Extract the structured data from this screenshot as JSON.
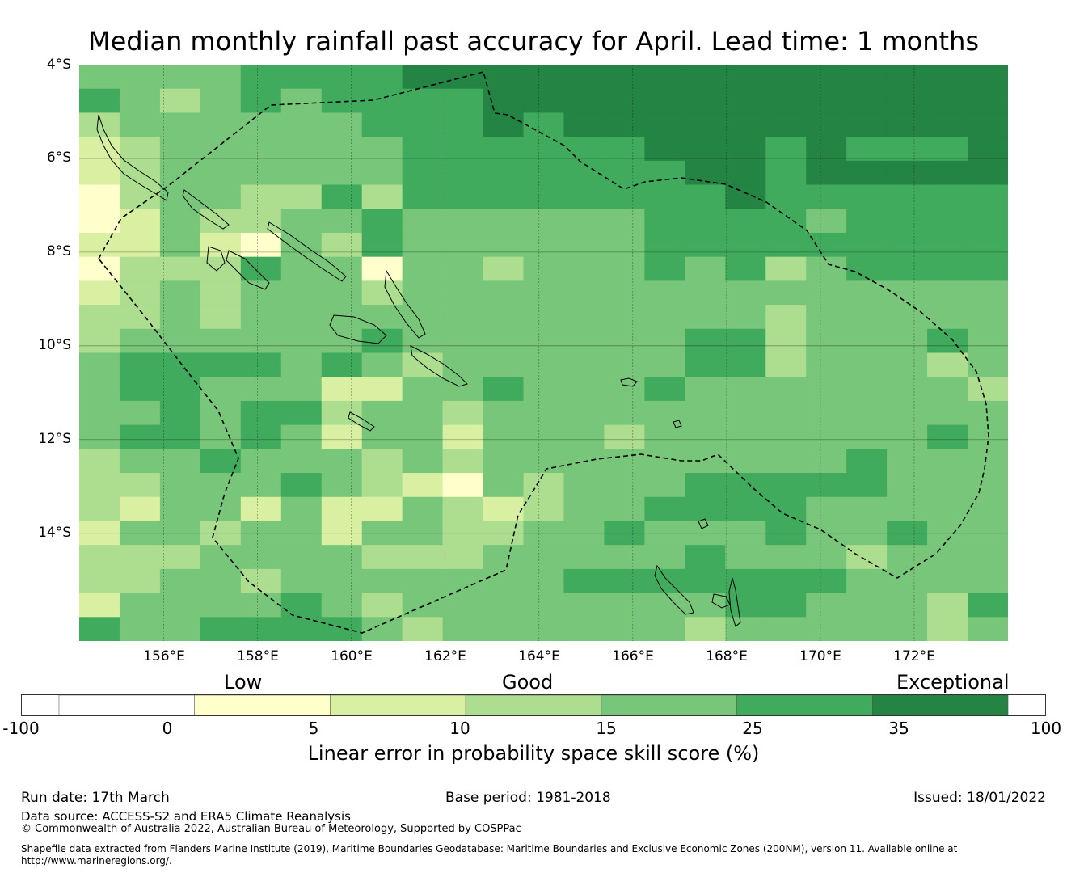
{
  "title": "Median monthly rainfall past accuracy for April. Lead time: 1 months",
  "map": {
    "lon_range": [
      154.2,
      174.0
    ],
    "lat_range": [
      -16.3,
      -4.0
    ],
    "lat_labels": [
      "4°S",
      "6°S",
      "8°S",
      "10°S",
      "12°S",
      "14°S"
    ],
    "lon_labels": [
      "156°E",
      "158°E",
      "160°E",
      "162°E",
      "164°E",
      "166°E",
      "168°E",
      "170°E",
      "172°E"
    ],
    "grid_lons": [
      156,
      158,
      160,
      162,
      164,
      166,
      168,
      170,
      172
    ],
    "grid_lats": [
      -4,
      -6,
      -8,
      -10,
      -12,
      -14
    ],
    "bins": [
      -100,
      0,
      5,
      10,
      15,
      25,
      35,
      100
    ],
    "bin_colors": [
      "#ffffff",
      "#ffffcc",
      "#d9f0a3",
      "#addd8e",
      "#78c679",
      "#41ab5d",
      "#238443"
    ],
    "skill_grid_note": "rows north to south, columns west to east; values are bin index 0-6",
    "skill_grid": [
      "44445555666666666666666",
      "54345455556666666666666",
      "34444445556566666666666",
      "23444444555555666565556",
      "23444444555555566566666",
      "13443353555555556555555",
      "12433445444444555545555",
      "22421435444444555555555",
      "13335441443444545345555",
      "23434443444444444444444",
      "33434444444444444344444",
      "34444445444444455344454",
      "45555454344444455344434",
      "45544422445444544444443",
      "44545534434444444444444",
      "45545424424443444444454",
      "34454443434444444445444",
      "33444543214344455555444",
      "32442422432344555544444",
      "24434424433445444544544",
      "33344443334444454443444",
      "33443444444455555554444",
      "24444543444444445544435",
      "54455554344444434444434"
    ]
  },
  "colorbar": {
    "category_labels": [
      "Low",
      "Good",
      "Exceptional"
    ],
    "ticks": [
      "-100",
      "0",
      "5",
      "10",
      "15",
      "25",
      "35",
      "100"
    ],
    "label": "Linear error in probability space skill score (%)"
  },
  "footer": {
    "run_date": "Run date: 17th March",
    "base_period": "Base period: 1981-2018",
    "issued": "Issued: 18/01/2022",
    "data_source": "Data source: ACCESS-S2 and ERA5 Climate Reanalysis",
    "copyright": "© Commonwealth of Australia 2022, Australian Bureau of Meteorology, Supported by COSPPac",
    "shapefile_line1": "Shapefile data extracted from Flanders Marine Institute (2019), Maritime Boundaries Geodatabase: Maritime Boundaries and Exclusive Economic Zones (200NM), version 11. Available online at",
    "shapefile_line2": "http://www.marineregions.org/."
  }
}
